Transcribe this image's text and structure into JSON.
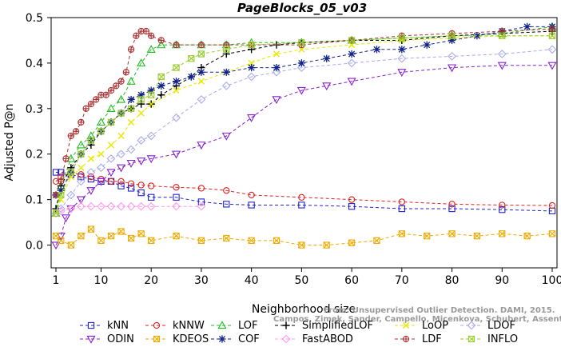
{
  "chart_data": {
    "type": "line",
    "title": "PageBlocks_05_v03",
    "xlabel": "Neighborhood size",
    "ylabel": "Adjusted P@n",
    "xlim": [
      1,
      100
    ],
    "ylim": [
      -0.05,
      0.5
    ],
    "x_ticks": [
      1,
      10,
      20,
      30,
      40,
      50,
      60,
      70,
      80,
      90,
      100
    ],
    "y_ticks": [
      0.0,
      0.1,
      0.2,
      0.3,
      0.4,
      0.5
    ],
    "x_tick_labels": [
      "1",
      "10",
      "20",
      "30",
      "40",
      "50",
      "60",
      "70",
      "80",
      "90",
      "100"
    ],
    "y_tick_labels": [
      "0.0",
      "0.1",
      "0.2",
      "0.3",
      "0.4",
      "0.5"
    ],
    "grid": false,
    "legend_position": "bottom",
    "watermark": [
      "From: Unsupervised Outlier Detection. DAMI, 2015.",
      "Campos, Zimek, Sander, Campello, Micenkova, Schubert, Assent, Houle"
    ],
    "series": [
      {
        "name": "kNN",
        "color": "#2222cc",
        "marker": "square",
        "x": [
          1,
          2,
          4,
          6,
          8,
          10,
          12,
          14,
          16,
          18,
          20,
          25,
          30,
          35,
          40,
          50,
          60,
          70,
          80,
          90,
          100
        ],
        "y": [
          0.16,
          0.16,
          0.155,
          0.15,
          0.145,
          0.14,
          0.14,
          0.13,
          0.125,
          0.115,
          0.105,
          0.105,
          0.095,
          0.09,
          0.088,
          0.088,
          0.085,
          0.08,
          0.08,
          0.078,
          0.075
        ]
      },
      {
        "name": "kNNW",
        "color": "#dd2222",
        "marker": "circle",
        "x": [
          1,
          2,
          4,
          6,
          8,
          10,
          12,
          14,
          16,
          18,
          20,
          25,
          30,
          35,
          40,
          50,
          60,
          70,
          80,
          90,
          100
        ],
        "y": [
          0.14,
          0.15,
          0.158,
          0.155,
          0.15,
          0.145,
          0.14,
          0.14,
          0.135,
          0.132,
          0.13,
          0.127,
          0.125,
          0.12,
          0.11,
          0.105,
          0.1,
          0.095,
          0.09,
          0.088,
          0.087
        ]
      },
      {
        "name": "LOF",
        "color": "#22bb22",
        "marker": "triangle",
        "x": [
          1,
          2,
          4,
          6,
          8,
          10,
          12,
          14,
          16,
          18,
          20,
          22,
          25,
          30,
          35,
          40,
          50,
          60,
          70,
          80,
          90,
          100
        ],
        "y": [
          0.07,
          0.13,
          0.19,
          0.22,
          0.24,
          0.27,
          0.3,
          0.32,
          0.36,
          0.4,
          0.43,
          0.44,
          0.44,
          0.44,
          0.44,
          0.445,
          0.445,
          0.45,
          0.455,
          0.46,
          0.465,
          0.48
        ]
      },
      {
        "name": "SimplifiedLOF",
        "color": "#000000",
        "marker": "plus",
        "x": [
          1,
          2,
          4,
          6,
          8,
          10,
          12,
          14,
          16,
          18,
          20,
          22,
          25,
          28,
          30,
          35,
          40,
          45,
          50,
          60,
          70,
          80,
          90,
          100
        ],
        "y": [
          0.08,
          0.13,
          0.17,
          0.2,
          0.22,
          0.25,
          0.27,
          0.29,
          0.3,
          0.31,
          0.31,
          0.33,
          0.35,
          0.37,
          0.39,
          0.42,
          0.43,
          0.44,
          0.445,
          0.45,
          0.45,
          0.46,
          0.465,
          0.47
        ]
      },
      {
        "name": "LoOP",
        "color": "#e8e800",
        "marker": "cross",
        "x": [
          1,
          2,
          4,
          6,
          8,
          10,
          12,
          14,
          16,
          18,
          20,
          25,
          30,
          35,
          40,
          45,
          50,
          60,
          70,
          80,
          90,
          100
        ],
        "y": [
          0.07,
          0.1,
          0.15,
          0.17,
          0.19,
          0.2,
          0.22,
          0.24,
          0.27,
          0.29,
          0.31,
          0.34,
          0.36,
          0.38,
          0.4,
          0.42,
          0.43,
          0.44,
          0.45,
          0.455,
          0.46,
          0.46
        ]
      },
      {
        "name": "LDOF",
        "color": "#aaaaee",
        "marker": "diamond",
        "x": [
          1,
          2,
          4,
          6,
          8,
          10,
          12,
          14,
          16,
          18,
          20,
          25,
          30,
          35,
          40,
          45,
          50,
          60,
          70,
          80,
          90,
          100
        ],
        "y": [
          0.07,
          0.08,
          0.11,
          0.14,
          0.16,
          0.17,
          0.19,
          0.2,
          0.21,
          0.23,
          0.24,
          0.28,
          0.32,
          0.35,
          0.37,
          0.38,
          0.39,
          0.4,
          0.41,
          0.415,
          0.42,
          0.43
        ]
      },
      {
        "name": "ODIN",
        "color": "#8822cc",
        "marker": "triangle-down",
        "x": [
          1,
          2,
          3,
          4,
          6,
          8,
          10,
          12,
          14,
          16,
          18,
          20,
          25,
          30,
          35,
          40,
          45,
          50,
          55,
          60,
          70,
          80,
          90,
          100
        ],
        "y": [
          0.0,
          0.02,
          0.06,
          0.08,
          0.1,
          0.12,
          0.14,
          0.16,
          0.17,
          0.18,
          0.185,
          0.19,
          0.2,
          0.22,
          0.24,
          0.28,
          0.32,
          0.34,
          0.35,
          0.36,
          0.38,
          0.39,
          0.395,
          0.395
        ]
      },
      {
        "name": "KDEOS",
        "color": "#eeaa00",
        "marker": "square-x",
        "x": [
          1,
          2,
          4,
          6,
          8,
          10,
          12,
          14,
          16,
          18,
          20,
          25,
          30,
          35,
          40,
          45,
          50,
          55,
          60,
          65,
          70,
          75,
          80,
          85,
          90,
          95,
          100
        ],
        "y": [
          0.02,
          0.01,
          0.0,
          0.02,
          0.035,
          0.01,
          0.02,
          0.03,
          0.015,
          0.025,
          0.01,
          0.02,
          0.01,
          0.015,
          0.01,
          0.01,
          0.0,
          0.0,
          0.005,
          0.01,
          0.025,
          0.02,
          0.025,
          0.02,
          0.025,
          0.02,
          0.025
        ]
      },
      {
        "name": "COF",
        "color": "#112288",
        "marker": "asterisk",
        "x": [
          1,
          2,
          4,
          6,
          8,
          10,
          12,
          14,
          16,
          18,
          20,
          22,
          25,
          28,
          30,
          35,
          40,
          45,
          50,
          55,
          60,
          65,
          70,
          75,
          80,
          85,
          90,
          95,
          100
        ],
        "y": [
          0.11,
          0.12,
          0.16,
          0.2,
          0.23,
          0.25,
          0.27,
          0.29,
          0.32,
          0.33,
          0.34,
          0.35,
          0.36,
          0.37,
          0.38,
          0.38,
          0.39,
          0.39,
          0.4,
          0.41,
          0.42,
          0.43,
          0.43,
          0.44,
          0.45,
          0.46,
          0.47,
          0.48,
          0.48
        ]
      },
      {
        "name": "FastABOD",
        "color": "#ff99ee",
        "marker": "diamond",
        "x": [
          1,
          2,
          4,
          6,
          8,
          10,
          12,
          14,
          16,
          18,
          20,
          25,
          30
        ],
        "y": [
          0.07,
          0.075,
          0.08,
          0.085,
          0.085,
          0.085,
          0.085,
          0.085,
          0.085,
          0.085,
          0.085,
          0.085,
          0.085
        ]
      },
      {
        "name": "LDF",
        "color": "#aa3333",
        "marker": "circle-plus",
        "x": [
          1,
          2,
          3,
          4,
          5,
          6,
          7,
          8,
          9,
          10,
          11,
          12,
          13,
          14,
          15,
          16,
          17,
          18,
          19,
          20,
          22,
          25,
          30,
          35,
          40,
          50,
          60,
          70,
          80,
          90,
          100
        ],
        "y": [
          0.11,
          0.14,
          0.19,
          0.24,
          0.25,
          0.27,
          0.3,
          0.31,
          0.32,
          0.33,
          0.33,
          0.34,
          0.35,
          0.36,
          0.38,
          0.43,
          0.46,
          0.47,
          0.47,
          0.46,
          0.45,
          0.44,
          0.44,
          0.44,
          0.44,
          0.44,
          0.45,
          0.46,
          0.465,
          0.47,
          0.475
        ]
      },
      {
        "name": "INFLO",
        "color": "#99cc33",
        "marker": "square-x",
        "x": [
          1,
          2,
          4,
          6,
          8,
          10,
          12,
          14,
          16,
          18,
          20,
          22,
          25,
          28,
          30,
          35,
          40,
          50,
          60,
          70,
          80,
          90,
          100
        ],
        "y": [
          0.07,
          0.11,
          0.16,
          0.2,
          0.23,
          0.25,
          0.27,
          0.29,
          0.3,
          0.32,
          0.33,
          0.37,
          0.39,
          0.41,
          0.42,
          0.43,
          0.44,
          0.445,
          0.45,
          0.455,
          0.46,
          0.46,
          0.46
        ]
      }
    ]
  }
}
